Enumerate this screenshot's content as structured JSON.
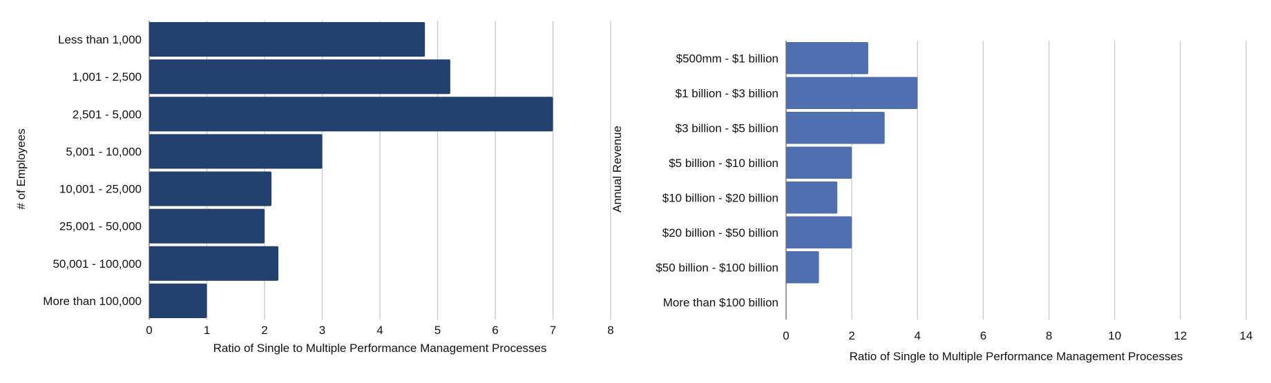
{
  "chart_data": [
    {
      "type": "bar",
      "orientation": "horizontal",
      "categories": [
        "Less than 1,000",
        "1,001 - 2,500",
        "2,501 - 5,000",
        "5,001 - 10,000",
        "10,001 - 25,000",
        "25,001 - 50,000",
        "50,001 - 100,000",
        "More than 100,000"
      ],
      "values": [
        4.78,
        5.22,
        7.0,
        3.0,
        2.12,
        2.0,
        2.24,
        1.0
      ],
      "xlabel": "Ratio of Single to Multiple Performance Management Processes",
      "ylabel": "# of Employees",
      "xlim": [
        0,
        8
      ],
      "xticks": [
        "0",
        "1",
        "2",
        "3",
        "4",
        "5",
        "6",
        "7",
        "8"
      ],
      "grid": true,
      "color": "#22416e"
    },
    {
      "type": "bar",
      "orientation": "horizontal",
      "categories": [
        "$500mm - $1 billion",
        "$1 billion - $3 billion",
        "$3 billion - $5 billion",
        "$5 billion - $10 billion",
        "$10 billion - $20 billion",
        "$20 billion - $50 billion",
        "$50 billion - $100 billion",
        "More than $100 billion"
      ],
      "values": [
        2.5,
        4.0,
        3.0,
        2.0,
        1.56,
        2.0,
        1.0,
        0
      ],
      "xlabel": "Ratio of Single to Multiple Performance Management Processes",
      "ylabel": "Annual Revenue",
      "xlim": [
        0,
        14
      ],
      "xticks": [
        "0",
        "2",
        "4",
        "6",
        "8",
        "10",
        "12",
        "14"
      ],
      "grid": true,
      "color": "#4f6fb0"
    }
  ]
}
